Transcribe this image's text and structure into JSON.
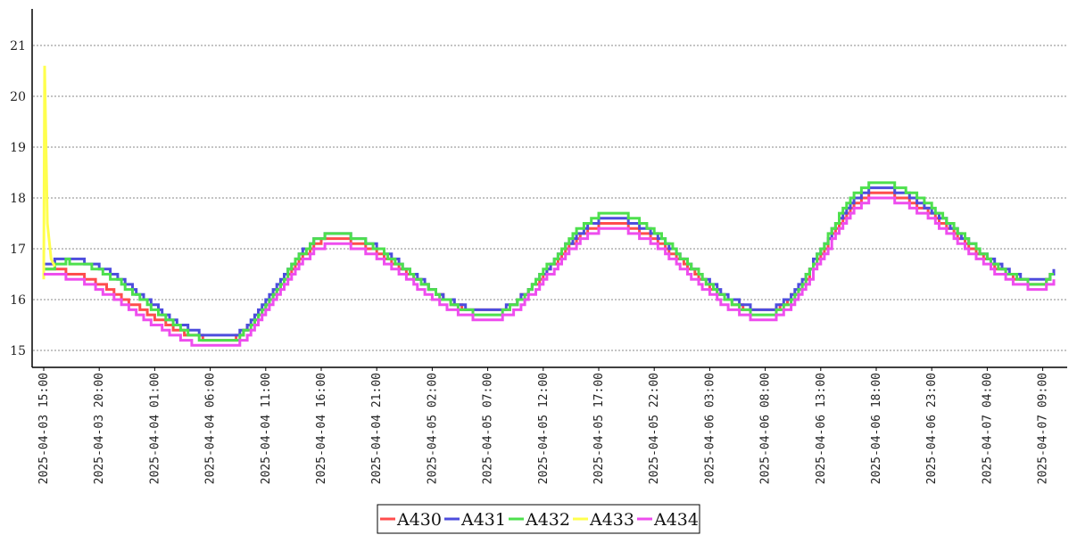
{
  "chart_data": {
    "type": "line",
    "title": "",
    "xlabel": "",
    "ylabel": "",
    "ylim": [
      14.65,
      21.7
    ],
    "y_ticks": [
      15,
      16,
      17,
      18,
      19,
      20,
      21
    ],
    "x_range": [
      "2025-04-03 14:00",
      "2025-04-07 13:00"
    ],
    "x_tick_labels": [
      "2025-04-03 15:00",
      "2025-04-03 20:00",
      "2025-04-04 01:00",
      "2025-04-04 06:00",
      "2025-04-04 11:00",
      "2025-04-04 16:00",
      "2025-04-04 21:00",
      "2025-04-05 02:00",
      "2025-04-05 07:00",
      "2025-04-05 12:00",
      "2025-04-05 17:00",
      "2025-04-05 22:00",
      "2025-04-06 03:00",
      "2025-04-06 08:00",
      "2025-04-06 13:00",
      "2025-04-06 18:00",
      "2025-04-06 23:00",
      "2025-04-07 04:00",
      "2025-04-07 09:00"
    ],
    "step": true,
    "grid": "horizontal dotted",
    "legend_position": "bottom-center",
    "series": [
      {
        "name": "A430",
        "color": "#ff4d4d",
        "x": [
          "2025-04-03 15:00",
          "2025-04-04 07:00",
          "2025-04-04 17:00",
          "2025-04-05 07:00",
          "2025-04-05 18:00",
          "2025-04-06 08:00",
          "2025-04-06 18:00",
          "2025-04-07 09:00",
          "2025-04-07 10:00"
        ],
        "y": [
          16.6,
          15.2,
          17.2,
          15.75,
          17.5,
          15.75,
          18.1,
          16.3,
          16.5
        ]
      },
      {
        "name": "A431",
        "color": "#4d4ddd",
        "x": [
          "2025-04-03 15:00",
          "2025-04-03 17:00",
          "2025-04-04 07:00",
          "2025-04-04 17:00",
          "2025-04-05 07:00",
          "2025-04-05 18:00",
          "2025-04-06 08:00",
          "2025-04-06 18:00",
          "2025-04-07 09:00",
          "2025-04-07 10:00"
        ],
        "y": [
          16.7,
          16.8,
          15.25,
          17.3,
          15.75,
          17.6,
          15.8,
          18.2,
          16.35,
          16.6
        ]
      },
      {
        "name": "A432",
        "color": "#4de04d",
        "x": [
          "2025-04-03 15:00",
          "2025-04-03 17:00",
          "2025-04-04 07:00",
          "2025-04-04 17:00",
          "2025-04-05 07:00",
          "2025-04-05 18:00",
          "2025-04-06 08:00",
          "2025-04-06 18:00",
          "2025-04-07 09:00",
          "2025-04-07 10:00"
        ],
        "y": [
          16.6,
          16.75,
          15.15,
          17.3,
          15.7,
          17.7,
          15.7,
          18.3,
          16.3,
          16.5
        ]
      },
      {
        "name": "A433",
        "color": "#ffff4d",
        "x": [
          "2025-04-03 15:00",
          "2025-04-03 15:05",
          "2025-04-03 15:20",
          "2025-04-03 15:40",
          "2025-04-03 16:00"
        ],
        "y": [
          16.4,
          20.6,
          17.5,
          16.8,
          16.65
        ]
      },
      {
        "name": "A434",
        "color": "#ee4dee",
        "x": [
          "2025-04-03 15:00",
          "2025-04-04 07:00",
          "2025-04-04 17:00",
          "2025-04-05 07:00",
          "2025-04-05 18:00",
          "2025-04-06 08:00",
          "2025-04-06 18:00",
          "2025-04-07 09:00",
          "2025-04-07 10:00"
        ],
        "y": [
          16.5,
          15.05,
          17.1,
          15.6,
          17.4,
          15.6,
          18.0,
          16.2,
          16.4
        ]
      }
    ]
  }
}
